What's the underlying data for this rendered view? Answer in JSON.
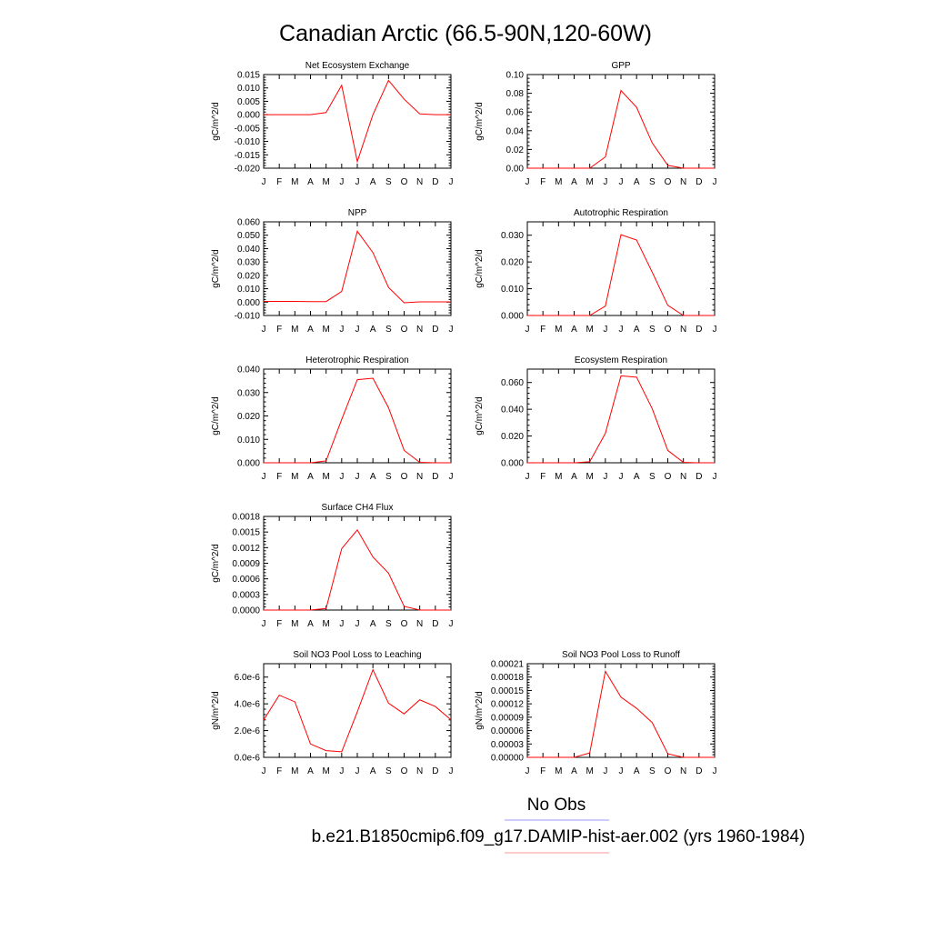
{
  "title": "Canadian Arctic (66.5-90N,120-60W)",
  "legend": {
    "obs_label": "No Obs",
    "obs_color": "#9999ff",
    "model_label": "b.e21.B1850cmip6.f09_g17.DAMIP-hist-aer.002 (yrs 1960-1984)",
    "model_color": "#ff9999",
    "position": "bottom"
  },
  "line_color": "#ff0000",
  "chart_data": [
    {
      "type": "line",
      "title": "Net Ecosystem Exchange",
      "ylabel": "gC/m^2/d",
      "categories": [
        "J",
        "F",
        "M",
        "A",
        "M",
        "J",
        "J",
        "A",
        "S",
        "O",
        "N",
        "D",
        "J"
      ],
      "ylim": [
        -0.02,
        0.015
      ],
      "yticks": [
        "-0.020",
        "-0.015",
        "-0.010",
        "-0.005",
        "0.000",
        "0.005",
        "0.010",
        "0.015"
      ],
      "values": [
        0.0,
        0.0,
        0.0,
        0.0,
        0.0008,
        0.011,
        -0.0175,
        0.0,
        0.0128,
        0.0058,
        0.0003,
        0.0,
        0.0
      ]
    },
    {
      "type": "line",
      "title": "GPP",
      "ylabel": "gC/m^2/d",
      "categories": [
        "J",
        "F",
        "M",
        "A",
        "M",
        "J",
        "J",
        "A",
        "S",
        "O",
        "N",
        "D",
        "J"
      ],
      "ylim": [
        0,
        0.1
      ],
      "yticks": [
        "0.00",
        "0.02",
        "0.04",
        "0.06",
        "0.08",
        "0.10"
      ],
      "values": [
        0.0,
        0.0,
        0.0,
        0.0,
        0.0,
        0.012,
        0.083,
        0.065,
        0.027,
        0.003,
        0.0,
        0.0,
        0.0
      ]
    },
    {
      "type": "line",
      "title": "NPP",
      "ylabel": "gC/m^2/d",
      "categories": [
        "J",
        "F",
        "M",
        "A",
        "M",
        "J",
        "J",
        "A",
        "S",
        "O",
        "N",
        "D",
        "J"
      ],
      "ylim": [
        -0.01,
        0.06
      ],
      "yticks": [
        "-0.010",
        "0.000",
        "0.010",
        "0.020",
        "0.030",
        "0.040",
        "0.050",
        "0.060"
      ],
      "values": [
        0.0005,
        0.0005,
        0.0005,
        0.0004,
        0.0004,
        0.008,
        0.053,
        0.037,
        0.011,
        -0.0005,
        0.0002,
        0.0002,
        0.0002
      ]
    },
    {
      "type": "line",
      "title": "Autotrophic Respiration",
      "ylabel": "gC/m^2/d",
      "categories": [
        "J",
        "F",
        "M",
        "A",
        "M",
        "J",
        "J",
        "A",
        "S",
        "O",
        "N",
        "D",
        "J"
      ],
      "ylim": [
        0,
        0.035
      ],
      "yticks": [
        "0.000",
        "0.010",
        "0.020",
        "0.030"
      ],
      "values": [
        0.0,
        0.0,
        0.0,
        0.0,
        0.0,
        0.0035,
        0.0302,
        0.0282,
        0.0162,
        0.0038,
        0.0,
        0.0,
        0.0
      ]
    },
    {
      "type": "line",
      "title": "Heterotrophic Respiration",
      "ylabel": "gC/m^2/d",
      "categories": [
        "J",
        "F",
        "M",
        "A",
        "M",
        "J",
        "J",
        "A",
        "S",
        "O",
        "N",
        "D",
        "J"
      ],
      "ylim": [
        0,
        0.04
      ],
      "yticks": [
        "0.000",
        "0.010",
        "0.020",
        "0.030",
        "0.040"
      ],
      "values": [
        0.0,
        0.0,
        0.0,
        0.0,
        0.0008,
        0.0185,
        0.0355,
        0.0361,
        0.0235,
        0.0053,
        0.0002,
        0.0,
        0.0
      ]
    },
    {
      "type": "line",
      "title": "Ecosystem Respiration",
      "ylabel": "gC/m^2/d",
      "categories": [
        "J",
        "F",
        "M",
        "A",
        "M",
        "J",
        "J",
        "A",
        "S",
        "O",
        "N",
        "D",
        "J"
      ],
      "ylim": [
        0,
        0.07
      ],
      "yticks": [
        "0.000",
        "0.020",
        "0.040",
        "0.060"
      ],
      "values": [
        0.0,
        0.0,
        0.0,
        0.0,
        0.0008,
        0.022,
        0.065,
        0.064,
        0.0405,
        0.0092,
        0.0003,
        0.0,
        0.0
      ]
    },
    {
      "type": "line",
      "title": "Surface CH4 Flux",
      "ylabel": "gC/m^2/d",
      "categories": [
        "J",
        "F",
        "M",
        "A",
        "M",
        "J",
        "J",
        "A",
        "S",
        "O",
        "N",
        "D",
        "J"
      ],
      "ylim": [
        0,
        0.0018
      ],
      "yticks": [
        "0.0000",
        "0.0003",
        "0.0006",
        "0.0009",
        "0.0012",
        "0.0015",
        "0.0018"
      ],
      "values": [
        0.0,
        0.0,
        0.0,
        0.0,
        3e-05,
        0.00118,
        0.00154,
        0.00102,
        0.00071,
        7e-05,
        0.0,
        0.0,
        0.0
      ]
    },
    {
      "type": "line",
      "title": "Soil NO3 Pool Loss to Leaching",
      "ylabel": "gN/m^2/d",
      "categories": [
        "J",
        "F",
        "M",
        "A",
        "M",
        "J",
        "J",
        "A",
        "S",
        "O",
        "N",
        "D",
        "J"
      ],
      "ylim": [
        0,
        7e-06
      ],
      "yticks": [
        "0.0e-6",
        "2.0e-6",
        "4.0e-6",
        "6.0e-6"
      ],
      "values": [
        2.8e-06,
        4.65e-06,
        4.15e-06,
        1e-06,
        5e-07,
        4.2e-07,
        3.4e-06,
        6.55e-06,
        4.05e-06,
        3.25e-06,
        4.3e-06,
        3.8e-06,
        2.8e-06
      ]
    },
    {
      "type": "line",
      "title": "Soil NO3 Pool Loss to Runoff",
      "ylabel": "gN/m^2/d",
      "categories": [
        "J",
        "F",
        "M",
        "A",
        "M",
        "J",
        "J",
        "A",
        "S",
        "O",
        "N",
        "D",
        "J"
      ],
      "ylim": [
        0,
        0.00021
      ],
      "yticks": [
        "0.00000",
        "0.00003",
        "0.00006",
        "0.00009",
        "0.00012",
        "0.00015",
        "0.00018",
        "0.00021"
      ],
      "values": [
        0.0,
        0.0,
        0.0,
        0.0,
        1e-05,
        0.000193,
        0.000135,
        0.00011,
        7.8e-05,
        8e-06,
        0.0,
        0.0,
        0.0
      ]
    }
  ]
}
